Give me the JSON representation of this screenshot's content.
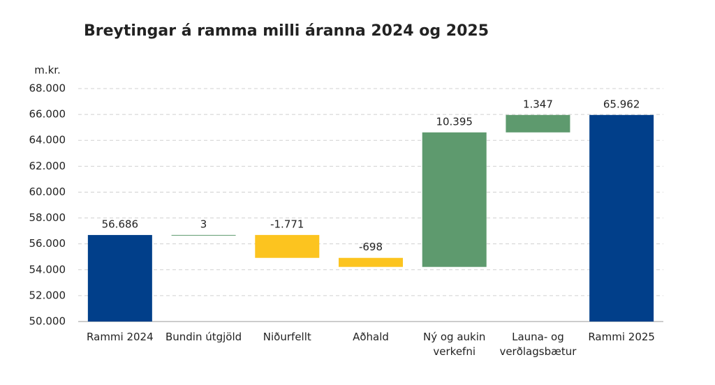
{
  "chart_data": {
    "type": "waterfall",
    "title": "Breytingar á ramma milli áranna 2024 og 2025",
    "y_label": "m.kr.",
    "categories": [
      "Rammi 2024",
      "Bundin útgjöld",
      "Niðurfellt",
      "Aðhald",
      "Ný og aukin verkefni",
      "Launa- og verðlagsbætur",
      "Rammi 2025"
    ],
    "values": [
      56686,
      3,
      -1771,
      -698,
      10395,
      1347,
      65962
    ],
    "value_labels": [
      "56.686",
      "3",
      "-1.771",
      "-698",
      "10.395",
      "1.347",
      "65.962"
    ],
    "measure": [
      "total",
      "relative",
      "relative",
      "relative",
      "relative",
      "relative",
      "total"
    ],
    "total_color": "#013f8a",
    "increase_color": "#5e9a6e",
    "decrease_color": "#fcc41f",
    "ylim": [
      50000,
      68000
    ],
    "yticks": [
      {
        "value": 50000,
        "label": "50.000"
      },
      {
        "value": 52000,
        "label": "52.000"
      },
      {
        "value": 54000,
        "label": "54.000"
      },
      {
        "value": 56000,
        "label": "56.000"
      },
      {
        "value": 58000,
        "label": "58.000"
      },
      {
        "value": 60000,
        "label": "60.000"
      },
      {
        "value": 62000,
        "label": "62.000"
      },
      {
        "value": 64000,
        "label": "64.000"
      },
      {
        "value": 66000,
        "label": "66.000"
      },
      {
        "value": 68000,
        "label": "68.000"
      }
    ],
    "grid": true
  }
}
